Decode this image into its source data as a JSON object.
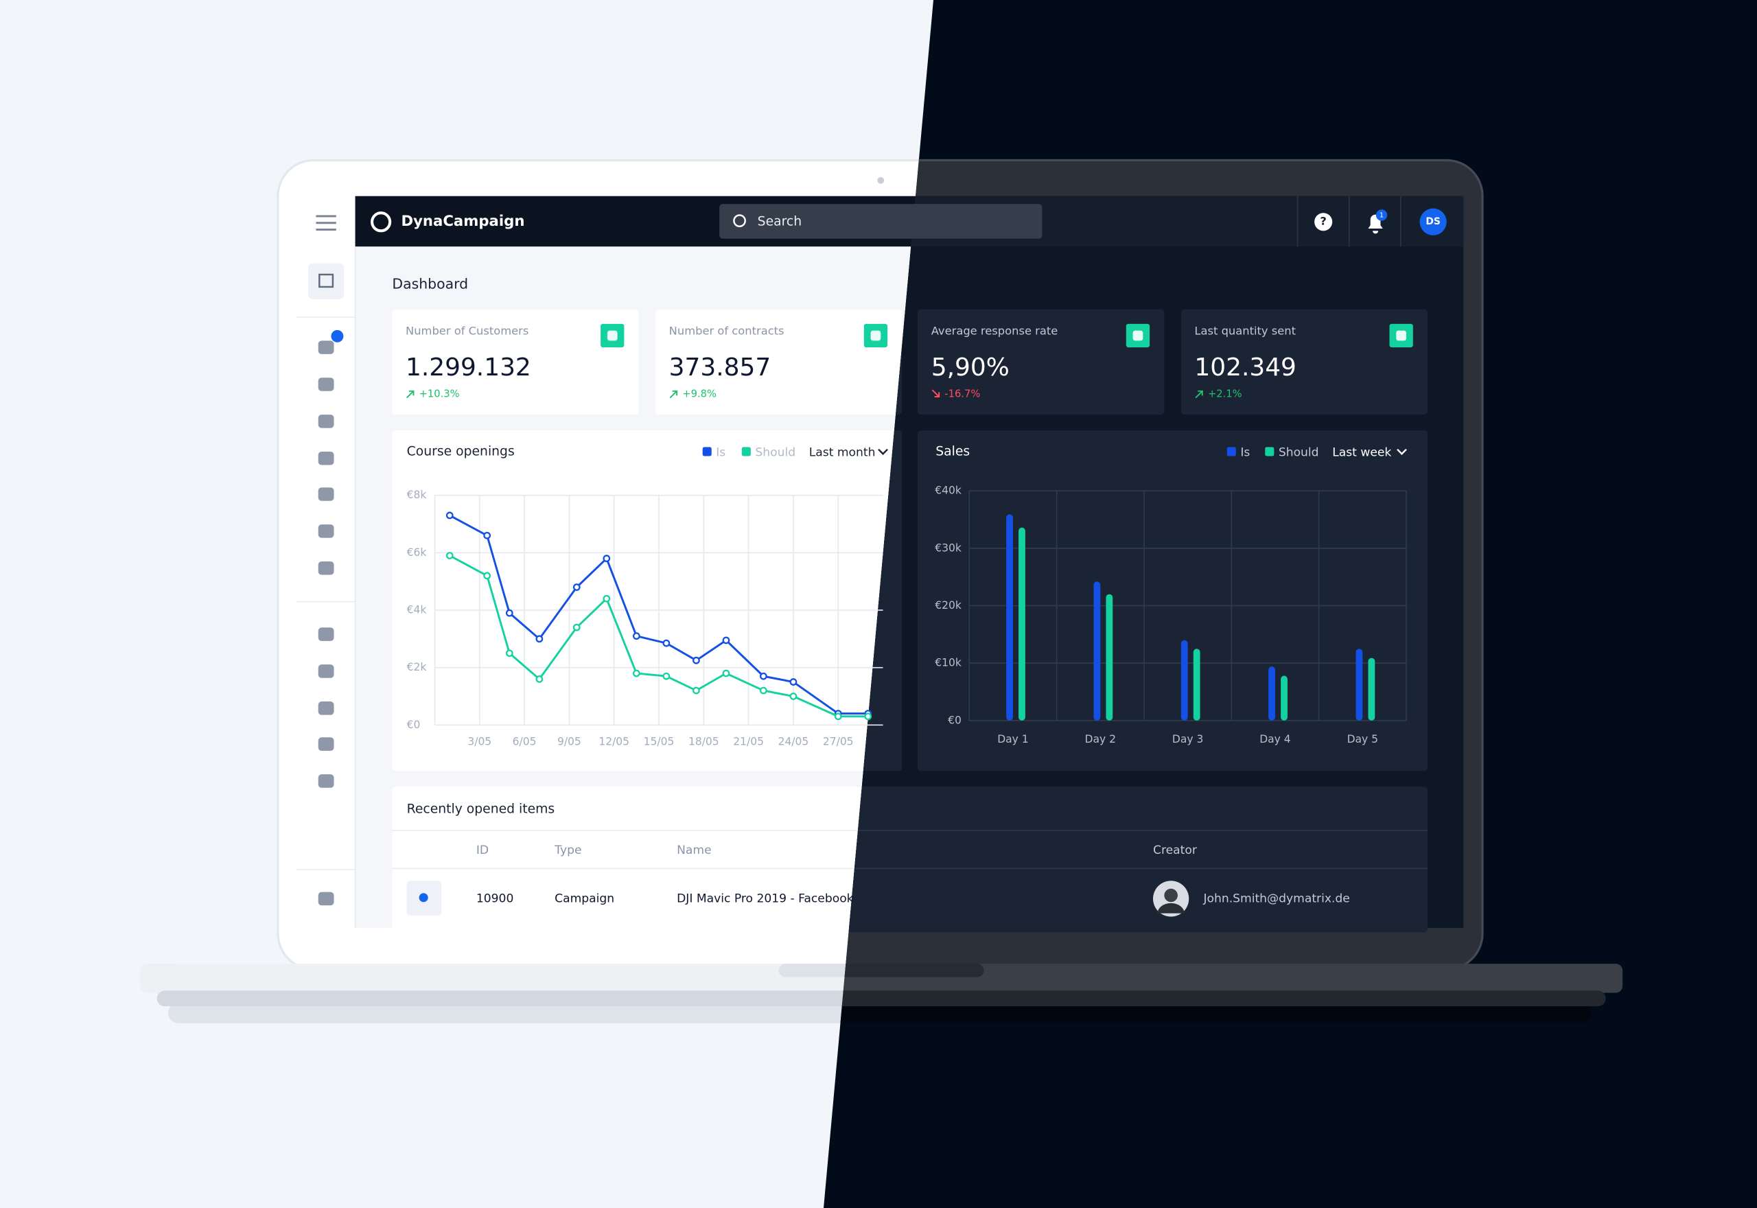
{
  "app": {
    "name": "DynaCampaign",
    "search": "Search",
    "notifications": "1",
    "avatar": "DS"
  },
  "dashboard_title": "Dashboard",
  "kpis": [
    {
      "label": "Number of Customers",
      "value": "1.299.132",
      "change": "+10.3%",
      "trend": "up"
    },
    {
      "label": "Number of contracts",
      "value": "373.857",
      "change": "+9.8%",
      "trend": "up"
    },
    {
      "label": "Average response rate",
      "value": "5,90%",
      "change": "-16.7%",
      "trend": "down"
    },
    {
      "label": "Last quantity sent",
      "value": "102.349",
      "change": "+2.1%",
      "trend": "up"
    }
  ],
  "chart_data": [
    {
      "type": "line",
      "title": "Course openings",
      "period": "Last month",
      "x": [
        1,
        3.5,
        5,
        7,
        9.5,
        11.5,
        13.5,
        15.5,
        17.5,
        19.5,
        22,
        24,
        27,
        29
      ],
      "series": [
        {
          "name": "Is",
          "color": "#1450e6",
          "values": [
            7300,
            6600,
            3900,
            3000,
            4800,
            5800,
            3100,
            2850,
            2250,
            2950,
            1700,
            1500,
            400,
            400
          ]
        },
        {
          "name": "Should",
          "color": "#14d2a0",
          "values": [
            5900,
            5200,
            2500,
            1600,
            3400,
            4400,
            1800,
            1700,
            1200,
            1800,
            1200,
            1000,
            300,
            300
          ]
        }
      ],
      "xlim": [
        0,
        30
      ],
      "xticks": [
        {
          "value": 3,
          "label": "3/05"
        },
        {
          "value": 6,
          "label": "6/05"
        },
        {
          "value": 9,
          "label": "9/05"
        },
        {
          "value": 12,
          "label": "12/05"
        },
        {
          "value": 15,
          "label": "15/05"
        },
        {
          "value": 18,
          "label": "18/05"
        },
        {
          "value": 21,
          "label": "21/05"
        },
        {
          "value": 24,
          "label": "24/05"
        },
        {
          "value": 27,
          "label": "27/05"
        }
      ],
      "ylim": [
        0,
        8000
      ],
      "yticks": [
        {
          "value": 0,
          "label": "€0"
        },
        {
          "value": 2000,
          "label": "€2k"
        },
        {
          "value": 4000,
          "label": "€4k"
        },
        {
          "value": 6000,
          "label": "€6k"
        },
        {
          "value": 8000,
          "label": "€8k"
        }
      ],
      "grid": true
    },
    {
      "type": "bar",
      "title": "Sales",
      "period": "Last week",
      "categories": [
        "Day 1",
        "Day 2",
        "Day 3",
        "Day 4",
        "Day 5"
      ],
      "series": [
        {
          "name": "Is",
          "color": "#1450e6",
          "values": [
            35900,
            24200,
            14000,
            9400,
            12500
          ]
        },
        {
          "name": "Should",
          "color": "#14d2a0",
          "values": [
            33600,
            22000,
            12500,
            7800,
            10900
          ]
        }
      ],
      "ylim": [
        0,
        40000
      ],
      "yticks": [
        {
          "value": 0,
          "label": "€0"
        },
        {
          "value": 10000,
          "label": "€10k"
        },
        {
          "value": 20000,
          "label": "€20k"
        },
        {
          "value": 30000,
          "label": "€30k"
        },
        {
          "value": 40000,
          "label": "€40k"
        }
      ],
      "grid": true
    }
  ],
  "recent": {
    "title": "Recently opened items",
    "columns": [
      "ID",
      "Type",
      "Name",
      "Creator"
    ],
    "rows": [
      [
        "10900",
        "Campaign",
        "DJI Mavic Pro 2019 - Facebook",
        "John.Smith@dymatrix.de"
      ]
    ]
  }
}
